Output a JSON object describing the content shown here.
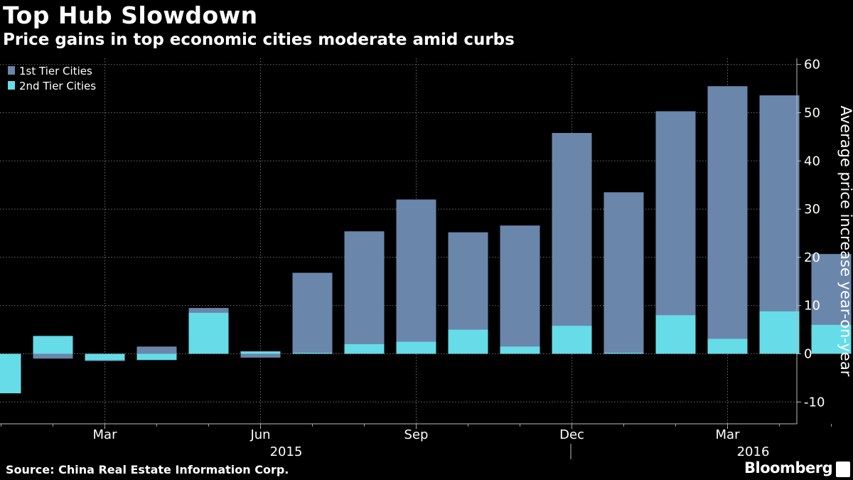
{
  "header": {
    "title": "Top Hub Slowdown",
    "subtitle": "Price gains in top economic cities moderate amid curbs"
  },
  "footer": {
    "source": "Source: China Real Estate Information Corp.",
    "brand": "Bloomberg"
  },
  "colors": {
    "tier1": "#6b86ab",
    "tier2": "#66dce8",
    "background": "#000000",
    "grid": "#6f6f6f"
  },
  "chart_data": {
    "type": "bar",
    "title": "Top Hub Slowdown",
    "subtitle": "Price gains in top economic cities moderate amid curbs",
    "ylabel": "Average price increase year-on-year",
    "xlabel": "",
    "categories": [
      "2015-01",
      "2015-02",
      "2015-03",
      "2015-04",
      "2015-05",
      "2015-06",
      "2015-07",
      "2015-08",
      "2015-09",
      "2015-10",
      "2015-11",
      "2015-12",
      "2016-01",
      "2016-02",
      "2016-03",
      "2016-04",
      "2016-05"
    ],
    "series": [
      {
        "name": "1st Tier Cities",
        "values": [
          -1.0,
          -1.0,
          -1.5,
          1.5,
          9.5,
          -0.8,
          16.8,
          25.4,
          32.0,
          25.2,
          26.6,
          45.8,
          33.5,
          50.3,
          55.5,
          53.6,
          20.7
        ]
      },
      {
        "name": "2nd Tier Cities",
        "values": [
          -8.2,
          3.7,
          -1.3,
          -1.3,
          8.5,
          0.5,
          0.2,
          2.0,
          2.5,
          5.0,
          1.5,
          5.8,
          0.2,
          8.0,
          3.1,
          8.8,
          6.0
        ]
      }
    ],
    "ylim": [
      -15,
      62
    ],
    "yticks": [
      -10,
      0,
      10,
      20,
      30,
      40,
      50,
      60
    ],
    "xtick_labels": [
      {
        "category": "2015-03",
        "label": "Mar"
      },
      {
        "category": "2015-06",
        "label": "Jun"
      },
      {
        "category": "2015-09",
        "label": "Sep"
      },
      {
        "category": "2015-12",
        "label": "Dec"
      },
      {
        "category": "2016-03",
        "label": "Mar"
      }
    ],
    "year_labels": [
      {
        "category": "2015-06",
        "label": "2015"
      },
      {
        "category": "2016-03",
        "label": "2016"
      }
    ],
    "grid": true,
    "legend": "top-left",
    "y_axis_position": "right"
  }
}
